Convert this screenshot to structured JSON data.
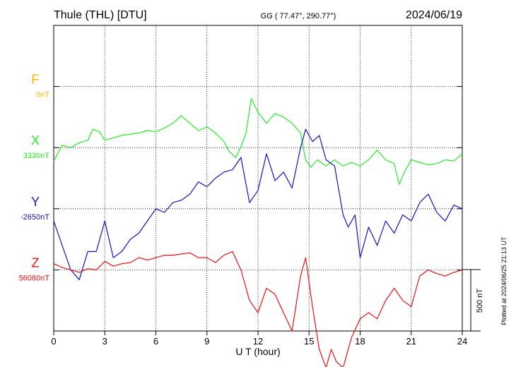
{
  "header": {
    "station": "Thule (THL)  [DTU]",
    "coords": "GG ( 77.47°, 290.77°)",
    "date": "2024/06/19"
  },
  "side_note": "Plotted at 2024/06/25 21:13 UT",
  "colors": {
    "F": "#ffb000",
    "X": "#22ee22",
    "Y": "#1111cc",
    "Z": "#ee1111"
  },
  "chart_data": {
    "type": "line",
    "title": "Thule (THL)  [DTU]",
    "xlabel": "U T (hour)",
    "xlim": [
      0,
      24
    ],
    "xticks": [
      "0",
      "3",
      "6",
      "9",
      "12",
      "15",
      "18",
      "21",
      "24"
    ],
    "scale_bar": {
      "value": 500,
      "label": "500 nT"
    },
    "series": [
      {
        "name": "F",
        "baseline_label": "0nT",
        "color": "#ffb000",
        "x": [],
        "values": []
      },
      {
        "name": "X",
        "baseline_label": "3330nT",
        "color": "#22ee22",
        "x": [
          0,
          0.5,
          1,
          1.5,
          2,
          2.3,
          2.7,
          3,
          3.5,
          4,
          4.5,
          5,
          5.5,
          6,
          6.5,
          7,
          7.5,
          8,
          8.5,
          9,
          9.5,
          10,
          10.3,
          10.7,
          11,
          11.3,
          11.6,
          12,
          12.5,
          13,
          13.5,
          14,
          14.5,
          14.8,
          15.1,
          15.5,
          16,
          16.5,
          17,
          17.5,
          18,
          18.5,
          19,
          19.5,
          20,
          20.3,
          20.6,
          21,
          21.5,
          22,
          22.5,
          23,
          23.5,
          24
        ],
        "values": [
          -110,
          20,
          0,
          40,
          60,
          150,
          130,
          60,
          80,
          100,
          110,
          120,
          140,
          130,
          160,
          200,
          260,
          200,
          140,
          170,
          120,
          50,
          -30,
          -80,
          10,
          120,
          400,
          290,
          200,
          280,
          250,
          200,
          120,
          -100,
          -160,
          -100,
          -150,
          -100,
          -150,
          -120,
          -150,
          -100,
          -20,
          -100,
          -130,
          -300,
          -200,
          -100,
          -120,
          -140,
          -130,
          -100,
          -110,
          -50
        ]
      },
      {
        "name": "Y",
        "baseline_label": "-2650nT",
        "color": "#1111cc",
        "x": [
          0,
          0.5,
          1,
          1.5,
          2,
          2.5,
          3,
          3.5,
          4,
          4.5,
          5,
          5.5,
          6,
          6.5,
          7,
          7.5,
          8,
          8.5,
          9,
          9.5,
          10,
          10.5,
          11,
          11.5,
          12,
          12.5,
          13,
          13.5,
          14,
          14.5,
          14.8,
          15.2,
          15.6,
          16,
          16.5,
          17,
          17.3,
          17.7,
          18,
          18.5,
          19,
          19.5,
          20,
          20.5,
          21,
          21.5,
          22,
          22.5,
          23,
          23.5,
          24
        ],
        "values": [
          -100,
          -300,
          -500,
          -580,
          -350,
          -350,
          -100,
          -400,
          -350,
          -250,
          -200,
          -100,
          0,
          -30,
          50,
          70,
          120,
          220,
          180,
          250,
          300,
          320,
          420,
          50,
          150,
          450,
          230,
          300,
          170,
          500,
          650,
          550,
          600,
          400,
          350,
          -50,
          -150,
          -50,
          -400,
          -150,
          -300,
          -100,
          -200,
          -50,
          -100,
          50,
          120,
          -30,
          -100,
          30,
          0
        ]
      },
      {
        "name": "Z",
        "baseline_label": "56080nT",
        "color": "#ee1111",
        "x": [
          0,
          0.5,
          1,
          1.5,
          2,
          2.5,
          3,
          3.5,
          4,
          4.5,
          5,
          5.5,
          6,
          6.5,
          7,
          7.5,
          8,
          8.5,
          9,
          9.5,
          10,
          10.5,
          11,
          11.5,
          12,
          12.5,
          13,
          13.5,
          14,
          14.5,
          14.8,
          15.2,
          15.6,
          16,
          16.3,
          16.6,
          17,
          17.5,
          18,
          18.5,
          19,
          19.5,
          20,
          20.5,
          21,
          21.5,
          22,
          22.5,
          23,
          23.5,
          24
        ],
        "values": [
          50,
          20,
          0,
          -20,
          10,
          0,
          70,
          30,
          50,
          60,
          100,
          80,
          100,
          120,
          120,
          130,
          140,
          100,
          100,
          60,
          120,
          150,
          0,
          -250,
          -350,
          -150,
          -200,
          -350,
          -500,
          -50,
          100,
          -300,
          -650,
          -800,
          -650,
          -750,
          -800,
          -550,
          -400,
          -350,
          -400,
          -250,
          -150,
          -250,
          -300,
          -50,
          0,
          -30,
          -50,
          -20,
          0
        ]
      }
    ]
  }
}
